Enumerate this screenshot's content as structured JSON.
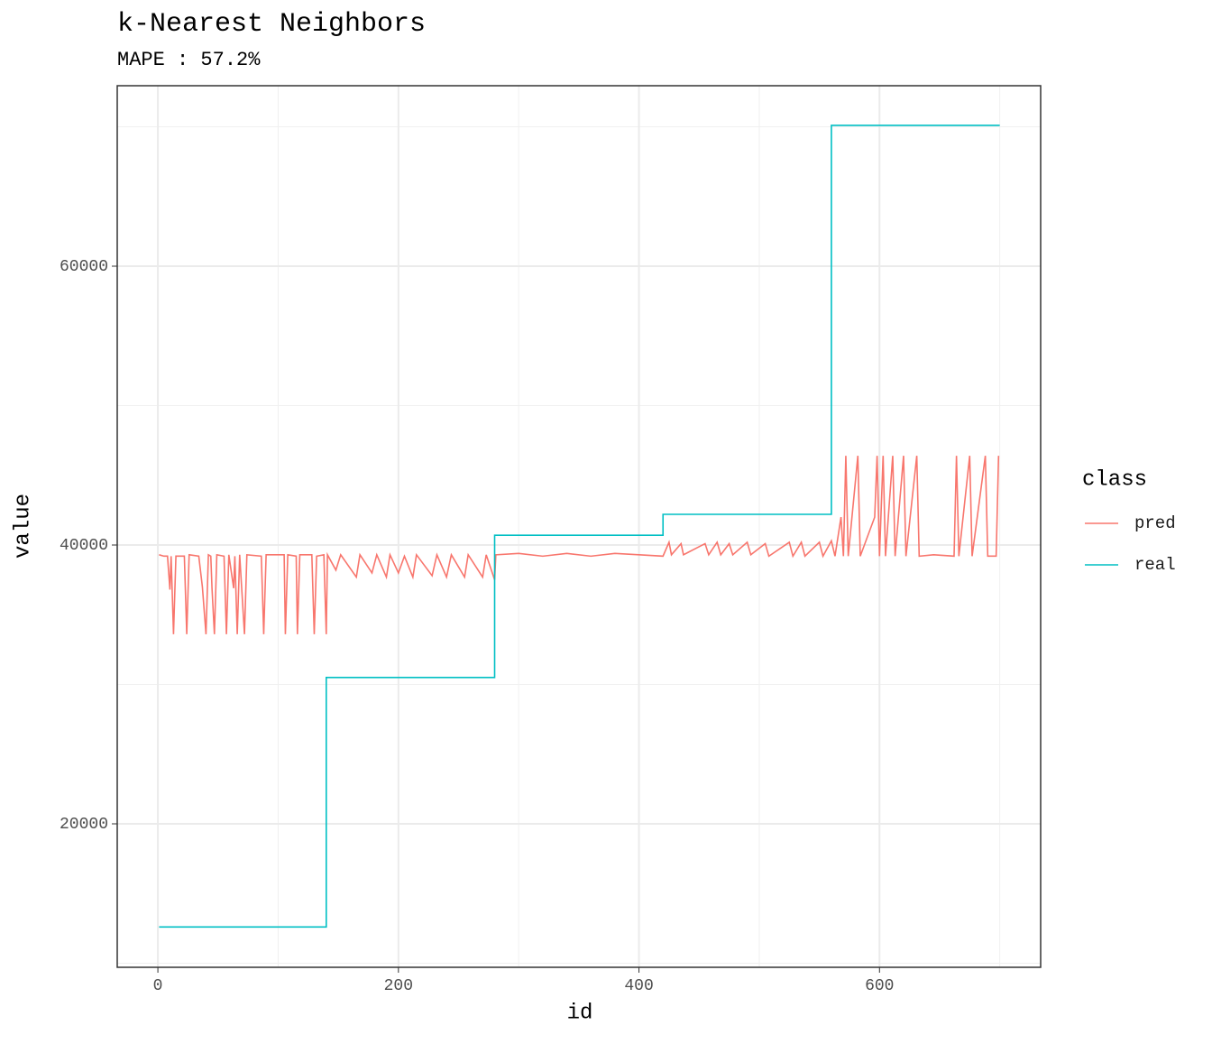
{
  "chart_data": {
    "type": "line",
    "title": "k-Nearest Neighbors",
    "subtitle": "MAPE : 57.2%",
    "x_label": "id",
    "y_label": "value",
    "legend_title": "class",
    "legend_position": "right",
    "xlim": [
      -33.8,
      734
    ],
    "xticks": [
      0,
      200,
      400,
      600
    ],
    "ylim": [
      9709,
      72945
    ],
    "yticks": [
      20000,
      40000,
      60000
    ],
    "grid": true,
    "series": [
      {
        "name": "pred",
        "color": "#f8766d",
        "x": [
          1,
          5,
          8,
          10,
          11,
          13,
          15,
          22,
          24,
          26,
          34,
          37,
          40,
          42,
          44,
          45,
          47,
          49,
          55,
          57,
          59,
          63,
          64,
          66,
          68,
          72,
          74,
          86,
          88,
          90,
          105,
          106,
          108,
          115,
          116,
          118,
          128,
          130,
          132,
          138,
          140,
          141,
          148,
          152,
          165,
          168,
          178,
          182,
          190,
          193,
          200,
          205,
          212,
          215,
          228,
          232,
          240,
          244,
          255,
          258,
          270,
          273,
          280,
          281,
          300,
          320,
          340,
          360,
          380,
          400,
          420,
          425,
          427,
          435,
          437,
          455,
          458,
          465,
          468,
          475,
          478,
          490,
          493,
          505,
          508,
          525,
          528,
          535,
          538,
          550,
          553,
          560,
          563,
          568,
          570,
          572,
          574,
          582,
          584,
          596,
          598,
          600,
          603,
          605,
          611,
          613,
          620,
          622,
          631,
          633,
          645,
          662,
          664,
          666,
          675,
          677,
          688,
          690,
          697,
          699
        ],
        "values": [
          39300,
          39200,
          39200,
          36800,
          39200,
          33600,
          39200,
          39200,
          33600,
          39300,
          39200,
          37000,
          33600,
          39300,
          39200,
          36900,
          33600,
          39300,
          39200,
          33600,
          39300,
          36900,
          39200,
          33600,
          39300,
          33600,
          39300,
          39200,
          33600,
          39300,
          39300,
          33600,
          39300,
          39200,
          33600,
          39300,
          39300,
          33600,
          39200,
          39300,
          33600,
          39300,
          38200,
          39300,
          37700,
          39300,
          38000,
          39300,
          37700,
          39300,
          38000,
          39200,
          37700,
          39300,
          37800,
          39300,
          37700,
          39300,
          37700,
          39300,
          37700,
          39300,
          37500,
          39300,
          39400,
          39200,
          39400,
          39200,
          39400,
          39300,
          39200,
          40200,
          39300,
          40100,
          39300,
          40100,
          39300,
          40200,
          39300,
          40100,
          39300,
          40200,
          39300,
          40100,
          39200,
          40200,
          39200,
          40200,
          39200,
          40200,
          39200,
          40300,
          39200,
          42000,
          39200,
          46400,
          39200,
          46400,
          39200,
          42000,
          46400,
          39200,
          46400,
          39200,
          46400,
          39200,
          46400,
          39200,
          46400,
          39200,
          39300,
          39200,
          46400,
          39200,
          46400,
          39200,
          46400,
          39200,
          39200,
          46400
        ]
      },
      {
        "name": "real",
        "color": "#00bfc4",
        "x": [
          1,
          140,
          140,
          280,
          280,
          420,
          420,
          560,
          560,
          700
        ],
        "values": [
          12600,
          12600,
          30500,
          30500,
          40700,
          40700,
          42200,
          42200,
          70100,
          70100
        ]
      }
    ]
  }
}
